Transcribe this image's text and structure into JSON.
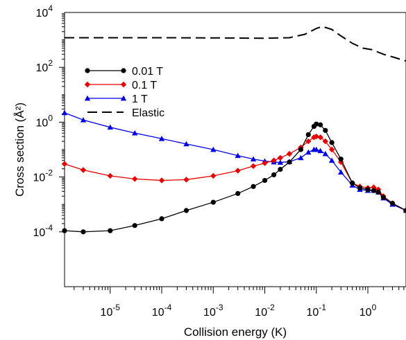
{
  "chart_data": {
    "type": "line",
    "xlabel": "Collision energy (K)",
    "ylabel": "Cross section (Å²)",
    "xscale": "log",
    "yscale": "log",
    "xlim": [
      1.3e-06,
      5.5
    ],
    "ylim": [
      1e-06,
      10000.0
    ],
    "x_ticks": [
      {
        "value": 1e-05,
        "base": "10",
        "exp": "-5"
      },
      {
        "value": 0.0001,
        "base": "10",
        "exp": "-4"
      },
      {
        "value": 0.001,
        "base": "10",
        "exp": "-3"
      },
      {
        "value": 0.01,
        "base": "10",
        "exp": "-2"
      },
      {
        "value": 0.1,
        "base": "10",
        "exp": "-1"
      },
      {
        "value": 1,
        "base": "10",
        "exp": "0"
      }
    ],
    "y_ticks": [
      {
        "value": 0.0001,
        "base": "10",
        "exp": "-4"
      },
      {
        "value": 0.01,
        "base": "10",
        "exp": "-2"
      },
      {
        "value": 1,
        "base": "10",
        "exp": "0"
      },
      {
        "value": 100.0,
        "base": "10",
        "exp": "2"
      },
      {
        "value": 10000.0,
        "base": "10",
        "exp": "4"
      }
    ],
    "legend_position": "upper-left",
    "series": [
      {
        "name": "0.01 T",
        "color": "#000000",
        "marker": "circle",
        "line": "solid",
        "x": [
          1.3e-06,
          3e-06,
          1e-05,
          3e-05,
          0.0001,
          0.0003,
          0.001,
          0.003,
          0.006,
          0.01,
          0.015,
          0.02,
          0.03,
          0.05,
          0.07,
          0.09,
          0.1,
          0.12,
          0.15,
          0.2,
          0.3,
          0.5,
          0.7,
          1.0,
          1.3,
          1.6,
          2.0,
          3.0,
          5.5
        ],
        "y": [
          0.00011,
          0.0001,
          0.00011,
          0.00017,
          0.0003,
          0.0006,
          0.0012,
          0.0025,
          0.0045,
          0.0075,
          0.012,
          0.019,
          0.035,
          0.1,
          0.35,
          0.7,
          0.85,
          0.8,
          0.5,
          0.18,
          0.045,
          0.006,
          0.004,
          0.0035,
          0.0032,
          0.0028,
          0.0018,
          0.0011,
          0.0006
        ]
      },
      {
        "name": "0.1 T",
        "color": "#e60000",
        "marker": "diamond",
        "line": "solid",
        "x": [
          1.3e-06,
          3e-06,
          1e-05,
          3e-05,
          0.0001,
          0.0003,
          0.001,
          0.003,
          0.006,
          0.01,
          0.015,
          0.02,
          0.03,
          0.05,
          0.07,
          0.09,
          0.1,
          0.12,
          0.15,
          0.2,
          0.3,
          0.5,
          0.7,
          1.0,
          1.3,
          1.6,
          2.0,
          3.0,
          5.5
        ],
        "y": [
          0.03,
          0.018,
          0.011,
          0.0085,
          0.0075,
          0.008,
          0.011,
          0.017,
          0.025,
          0.032,
          0.04,
          0.05,
          0.07,
          0.12,
          0.2,
          0.28,
          0.3,
          0.28,
          0.2,
          0.1,
          0.035,
          0.006,
          0.0045,
          0.004,
          0.0042,
          0.0035,
          0.002,
          0.0011,
          0.0006
        ]
      },
      {
        "name": "1 T",
        "color": "#0000e6",
        "marker": "triangle",
        "line": "solid",
        "x": [
          1.3e-06,
          3e-06,
          1e-05,
          3e-05,
          0.0001,
          0.0003,
          0.001,
          0.003,
          0.006,
          0.01,
          0.015,
          0.02,
          0.03,
          0.05,
          0.07,
          0.09,
          0.1,
          0.12,
          0.15,
          0.2,
          0.3,
          0.5,
          0.7,
          1.0,
          1.3,
          1.6,
          2.0,
          3.0,
          5.5
        ],
        "y": [
          2.2,
          1.2,
          0.65,
          0.4,
          0.25,
          0.16,
          0.1,
          0.06,
          0.045,
          0.038,
          0.035,
          0.034,
          0.036,
          0.05,
          0.08,
          0.1,
          0.1,
          0.09,
          0.07,
          0.04,
          0.015,
          0.005,
          0.0035,
          0.0032,
          0.0032,
          0.0028,
          0.0017,
          0.001,
          0.0006
        ]
      },
      {
        "name": "Elastic",
        "color": "#000000",
        "marker": "none",
        "line": "dashed",
        "x": [
          1.3e-06,
          1e-05,
          0.0001,
          0.001,
          0.01,
          0.03,
          0.06,
          0.1,
          0.13,
          0.2,
          0.3,
          0.5,
          0.8,
          1.2,
          2.0,
          3.5,
          5.5
        ],
        "y": [
          1200,
          1200,
          1200,
          1180,
          1150,
          1200,
          1600,
          2600,
          3100,
          2400,
          1400,
          750,
          500,
          440,
          300,
          220,
          170
        ]
      }
    ]
  }
}
